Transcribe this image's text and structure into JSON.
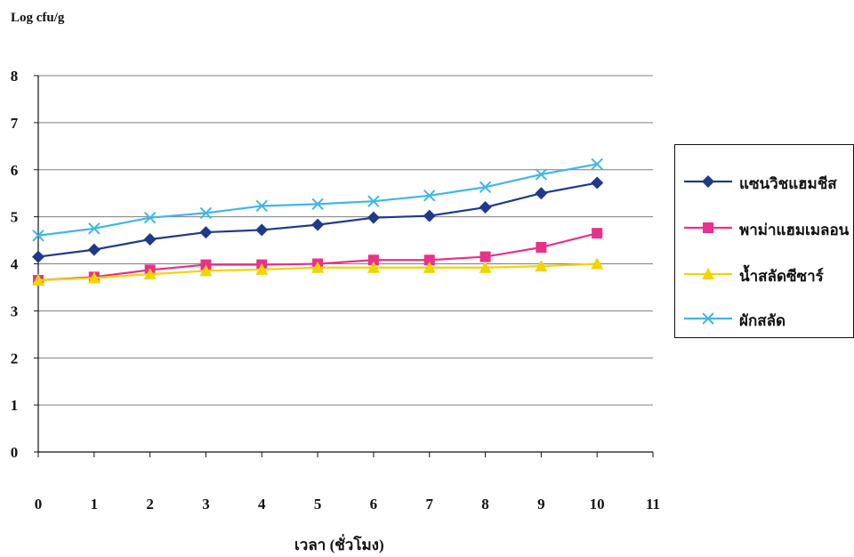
{
  "chart_data": {
    "type": "line",
    "ylabel": "Log cfu/g",
    "xlabel": "เวลา (ชั่วโมง)",
    "x_ticks": [
      "0",
      "1",
      "2",
      "3",
      "4",
      "5",
      "6",
      "7",
      "8",
      "9",
      "10",
      "11"
    ],
    "y_ticks": [
      "0",
      "1",
      "2",
      "3",
      "4",
      "5",
      "6",
      "7",
      "8"
    ],
    "xlim": [
      0,
      11
    ],
    "ylim": [
      0,
      8
    ],
    "grid": "horizontal",
    "legend_position": "right",
    "x": [
      0,
      1,
      2,
      3,
      4,
      5,
      6,
      7,
      8,
      9,
      10
    ],
    "series": [
      {
        "name": "แซนวิชแฮมชีส",
        "marker": "diamond",
        "color": "#1f3a8a",
        "values": [
          4.15,
          4.3,
          4.52,
          4.67,
          4.72,
          4.83,
          4.98,
          5.02,
          5.2,
          5.5,
          5.72
        ]
      },
      {
        "name": "พาม่าแฮมเมลอน",
        "marker": "square",
        "color": "#e8318a",
        "values": [
          3.65,
          3.72,
          3.87,
          3.98,
          3.98,
          4.0,
          4.08,
          4.08,
          4.15,
          4.35,
          4.65
        ]
      },
      {
        "name": "น้ำสลัดซีซาร์",
        "marker": "triangle",
        "color": "#f2d400",
        "values": [
          3.65,
          3.7,
          3.78,
          3.85,
          3.88,
          3.92,
          3.92,
          3.92,
          3.92,
          3.95,
          4.0
        ]
      },
      {
        "name": "ผักสลัด",
        "marker": "x",
        "color": "#3fb6e8",
        "values": [
          4.6,
          4.75,
          4.98,
          5.08,
          5.23,
          5.27,
          5.33,
          5.45,
          5.63,
          5.9,
          6.12
        ]
      }
    ]
  }
}
